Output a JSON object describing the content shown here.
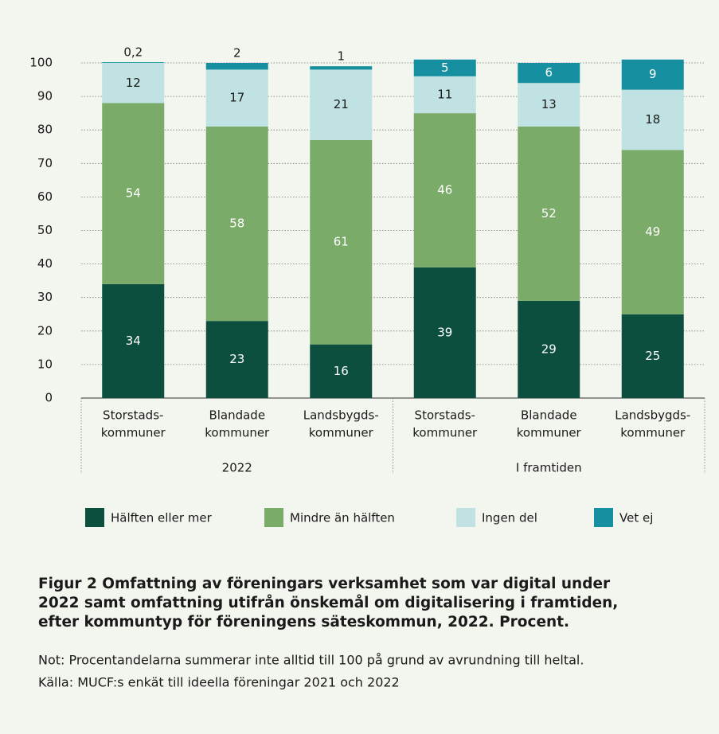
{
  "chart_data": {
    "type": "stacked-bar",
    "categories": [
      [
        "Storstads-",
        "kommuner"
      ],
      [
        "Blandade",
        "kommuner"
      ],
      [
        "Landsbygds-",
        "kommuner"
      ],
      [
        "Storstads-",
        "kommuner"
      ],
      [
        "Blandade",
        "kommuner"
      ],
      [
        "Landsbygds-",
        "kommuner"
      ]
    ],
    "groups": [
      "2022",
      "I framtiden"
    ],
    "series": [
      {
        "name": "Hälften eller mer",
        "color": "#0d4f3f",
        "values": [
          34,
          23,
          16,
          39,
          29,
          25
        ]
      },
      {
        "name": "Mindre än hälften",
        "color": "#7aab68",
        "values": [
          54,
          58,
          61,
          46,
          52,
          49
        ]
      },
      {
        "name": "Ingen del",
        "color": "#c0e2e2",
        "values": [
          12,
          17,
          21,
          11,
          13,
          18
        ]
      },
      {
        "name": "Vet ej",
        "color": "#1690a0",
        "values": [
          0.2,
          2,
          1,
          5,
          6,
          9
        ],
        "value_labels": [
          "0,2",
          "2",
          "1",
          "5",
          "6",
          "9"
        ]
      }
    ],
    "ylim": [
      0,
      100
    ],
    "yticks": [
      0,
      10,
      20,
      30,
      40,
      50,
      60,
      70,
      80,
      90,
      100
    ],
    "grid": true,
    "caption": {
      "title": [
        "Figur 2 Omfattning av föreningars verksamhet som var digital under",
        "2022 samt omfattning utifrån önskemål om digitalisering i framtiden,",
        "efter kommuntyp för föreningens säteskommun, 2022. Procent."
      ],
      "note": "Not: Procentandelarna summerar inte alltid till 100 på grund av avrundning till heltal.",
      "source": "Källa: MUCF:s enkät till ideella föreningar 2021 och 2022"
    }
  }
}
